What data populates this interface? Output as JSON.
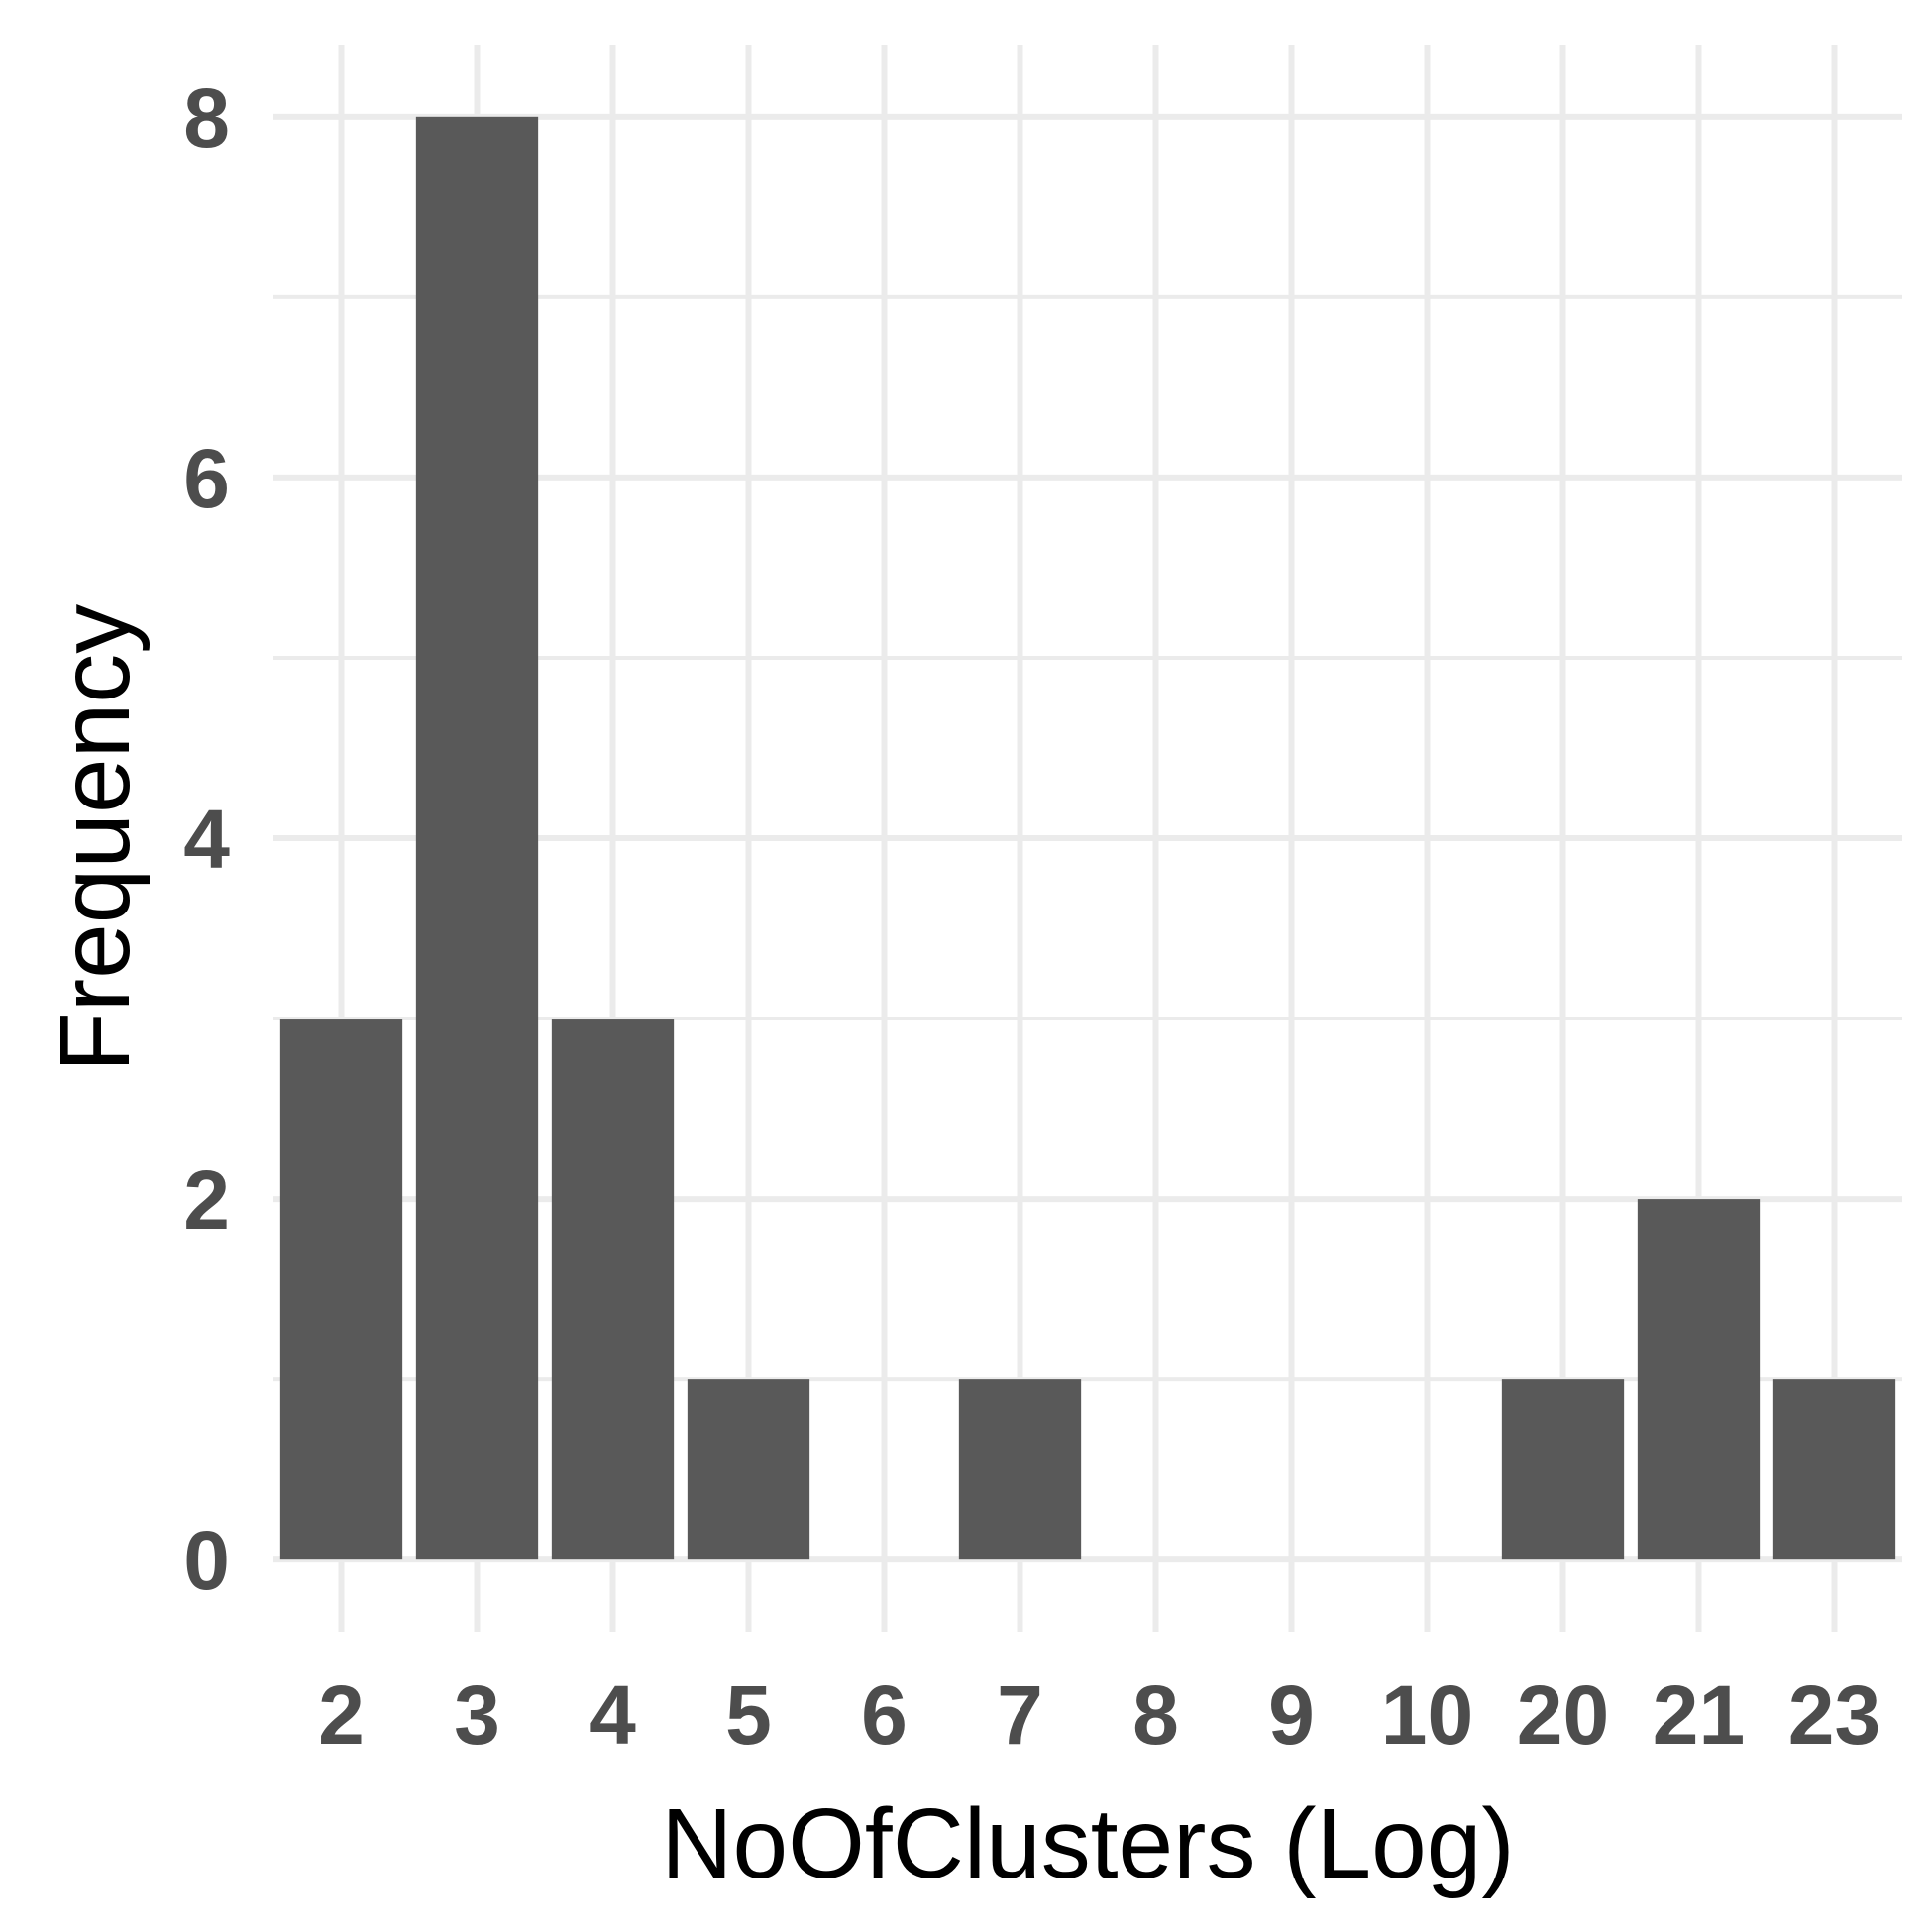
{
  "chart_data": {
    "type": "bar",
    "categories": [
      "2",
      "3",
      "4",
      "5",
      "6",
      "7",
      "8",
      "9",
      "10",
      "20",
      "21",
      "23"
    ],
    "values": [
      3,
      8,
      3,
      1,
      0,
      1,
      0,
      0,
      0,
      1,
      2,
      1
    ],
    "xlabel": "NoOfClusters (Log)",
    "ylabel": "Frequency",
    "ylim": [
      -0.4,
      8.4
    ],
    "yticks": [
      0,
      2,
      4,
      6,
      8
    ],
    "grid": true,
    "bar_color": "#595959",
    "grid_color": "#ebebeb",
    "tick_label_color": "#4d4d4d"
  }
}
